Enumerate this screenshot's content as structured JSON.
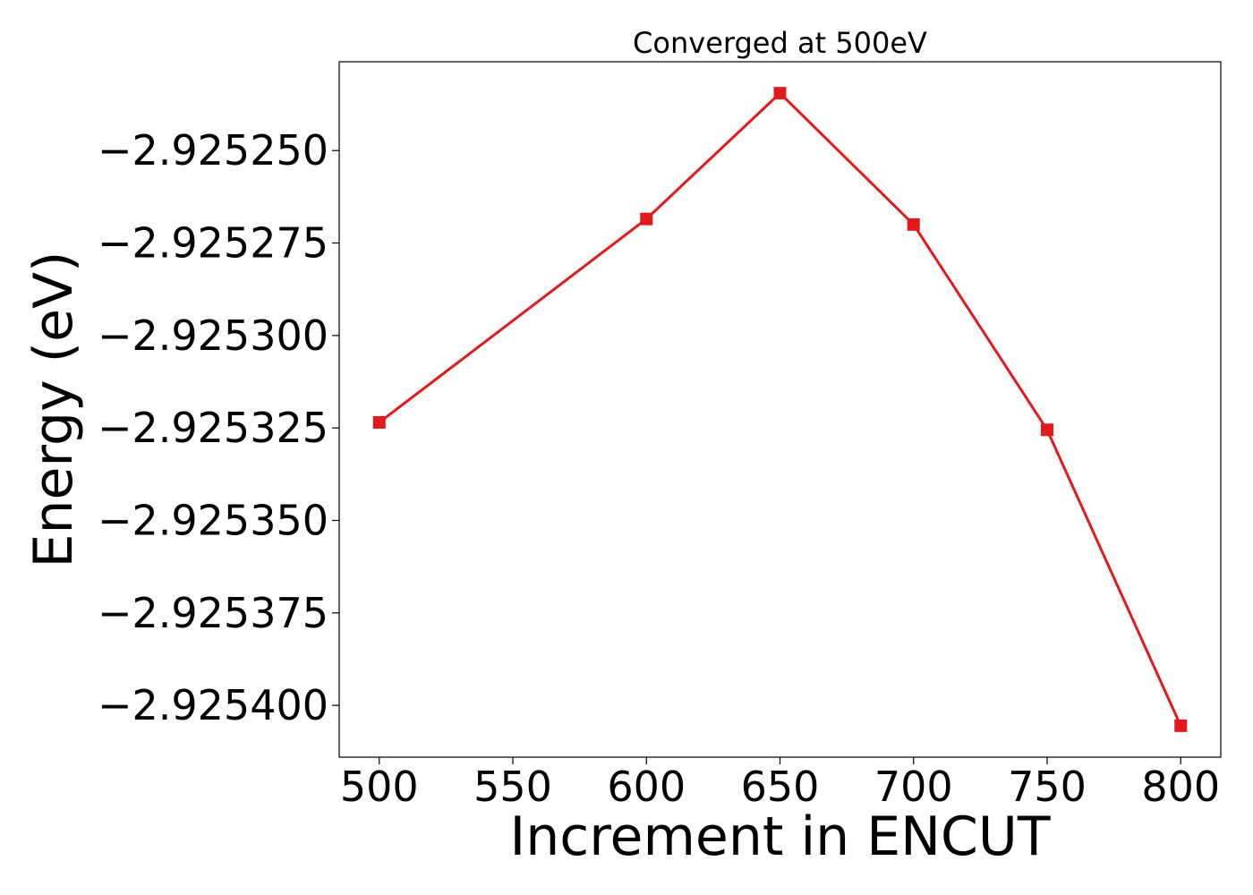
{
  "chart_data": {
    "type": "line",
    "title": "Converged at 500eV",
    "xlabel": "Increment in ENCUT",
    "ylabel": "Energy (eV)",
    "x": [
      500,
      600,
      650,
      700,
      750,
      800
    ],
    "series": [
      {
        "values": [
          -2.9253235,
          -2.9252685,
          -2.9252345,
          -2.92527,
          -2.9253255,
          -2.9254055
        ],
        "color": "#e31a1c",
        "marker": "square"
      }
    ],
    "xlim": [
      485,
      815
    ],
    "ylim": [
      -2.925414,
      -2.925226
    ],
    "xticks": [
      500,
      550,
      600,
      650,
      700,
      750,
      800
    ],
    "xtick_labels": [
      "500",
      "550",
      "600",
      "650",
      "700",
      "750",
      "800"
    ],
    "yticks": [
      -2.92525,
      -2.925275,
      -2.9253,
      -2.925325,
      -2.92535,
      -2.925375,
      -2.9254
    ],
    "ytick_labels": [
      "−2.925250",
      "−2.925275",
      "−2.925300",
      "−2.925325",
      "−2.925350",
      "−2.925375",
      "−2.925400"
    ],
    "grid": false,
    "legend": "none"
  }
}
